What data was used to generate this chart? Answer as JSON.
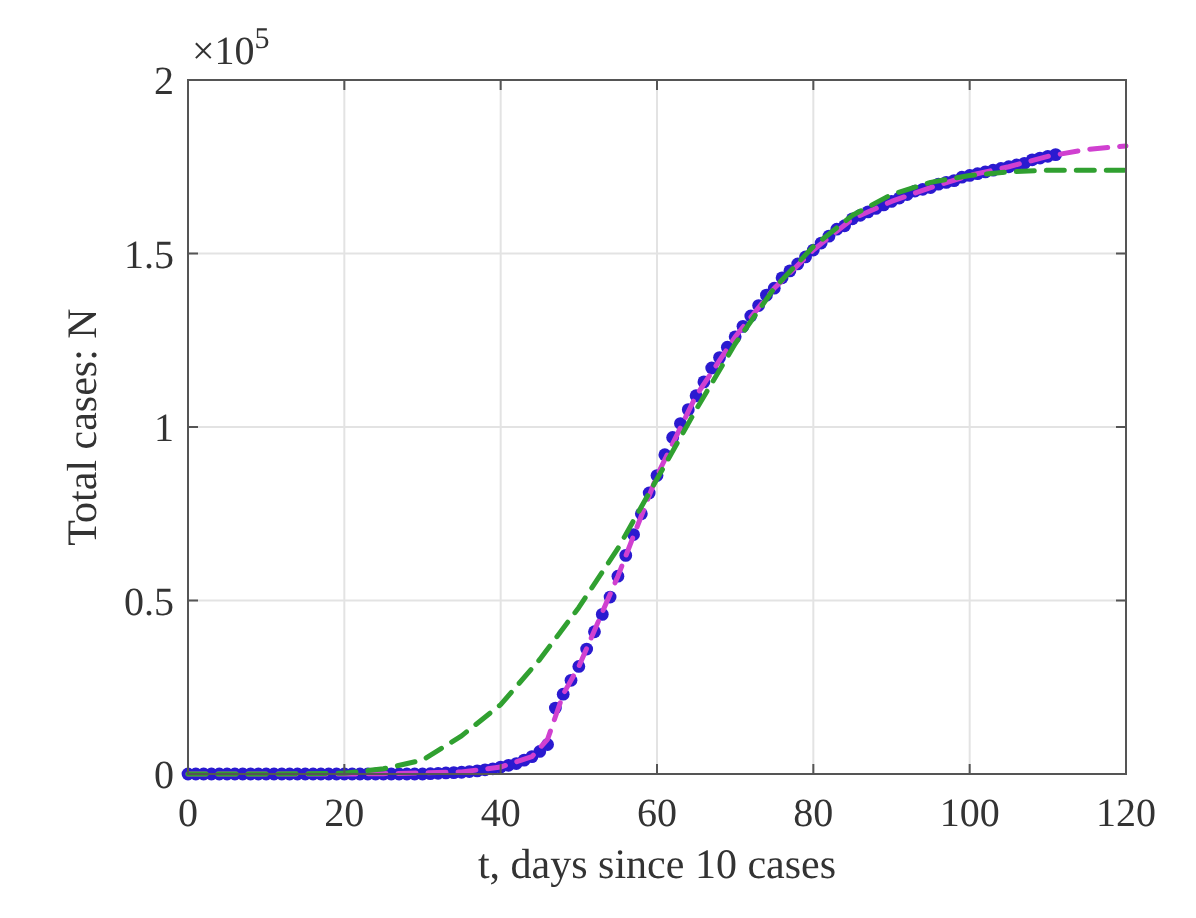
{
  "chart_data": {
    "type": "line",
    "xlabel": "t, days since 10 cases",
    "ylabel": "Total cases: N",
    "annotations": [
      "×10$^{5}$"
    ],
    "xlim": [
      0,
      120
    ],
    "xticks": [
      0,
      20,
      40,
      60,
      80,
      100,
      120
    ],
    "ylim": [
      0,
      2
    ],
    "yticks": [
      0,
      0.5,
      1,
      1.5,
      2
    ],
    "grid": true,
    "series": [
      {
        "color": "#d040d0",
        "line_style": "dashed",
        "marker": "none",
        "x": [
          0,
          10,
          20,
          25,
          30,
          35,
          40,
          44,
          46,
          48,
          50,
          55,
          60,
          65,
          70,
          75,
          80,
          85,
          90,
          95,
          100,
          105,
          110,
          115,
          120
        ],
        "values": [
          0,
          0,
          0,
          0.001,
          0.003,
          0.006,
          0.02,
          0.05,
          0.1,
          0.23,
          0.31,
          0.57,
          0.86,
          1.09,
          1.26,
          1.4,
          1.51,
          1.6,
          1.65,
          1.69,
          1.725,
          1.75,
          1.78,
          1.8,
          1.81
        ]
      },
      {
        "color": "#30a030",
        "line_style": "dashed",
        "marker": "none",
        "x": [
          0,
          10,
          20,
          25,
          30,
          35,
          40,
          45,
          50,
          55,
          60,
          65,
          70,
          75,
          80,
          85,
          90,
          95,
          100,
          105,
          110,
          115,
          120
        ],
        "values": [
          0,
          0,
          0.002,
          0.015,
          0.04,
          0.11,
          0.2,
          0.33,
          0.48,
          0.65,
          0.85,
          1.05,
          1.24,
          1.4,
          1.52,
          1.61,
          1.67,
          1.705,
          1.725,
          1.735,
          1.74,
          1.74,
          1.74
        ]
      },
      {
        "type": "scatter",
        "color": "#2a1ad0",
        "marker": "circle",
        "x": [
          0,
          1,
          2,
          3,
          4,
          5,
          6,
          7,
          8,
          9,
          10,
          11,
          12,
          13,
          14,
          15,
          16,
          17,
          18,
          19,
          20,
          21,
          22,
          23,
          24,
          25,
          26,
          27,
          28,
          29,
          30,
          31,
          32,
          33,
          34,
          35,
          36,
          37,
          38,
          39,
          40,
          41,
          42,
          43,
          44,
          45,
          46,
          47,
          48,
          49,
          50,
          51,
          52,
          53,
          54,
          55,
          56,
          57,
          58,
          59,
          60,
          61,
          62,
          63,
          64,
          65,
          66,
          67,
          68,
          69,
          70,
          71,
          72,
          73,
          74,
          75,
          76,
          77,
          78,
          79,
          80,
          81,
          82,
          83,
          84,
          85,
          86,
          87,
          88,
          89,
          90,
          91,
          92,
          93,
          94,
          95,
          96,
          97,
          98,
          99,
          100,
          101,
          102,
          103,
          104,
          105,
          106,
          107,
          108,
          109,
          110,
          111
        ],
        "values": [
          0,
          0,
          0,
          0,
          0,
          0,
          0,
          0,
          0,
          0,
          0,
          0,
          0,
          0,
          0,
          0,
          0,
          0,
          0,
          0,
          0,
          0,
          0,
          0,
          0,
          0,
          0,
          0,
          0,
          0,
          0,
          0.001,
          0.002,
          0.003,
          0.004,
          0.005,
          0.007,
          0.009,
          0.012,
          0.015,
          0.02,
          0.025,
          0.03,
          0.04,
          0.05,
          0.065,
          0.085,
          0.19,
          0.23,
          0.27,
          0.31,
          0.36,
          0.41,
          0.46,
          0.51,
          0.57,
          0.63,
          0.69,
          0.75,
          0.81,
          0.86,
          0.92,
          0.97,
          1.01,
          1.05,
          1.09,
          1.13,
          1.17,
          1.2,
          1.23,
          1.26,
          1.29,
          1.32,
          1.35,
          1.38,
          1.4,
          1.43,
          1.45,
          1.47,
          1.49,
          1.51,
          1.53,
          1.55,
          1.57,
          1.58,
          1.6,
          1.61,
          1.62,
          1.63,
          1.64,
          1.65,
          1.66,
          1.67,
          1.68,
          1.685,
          1.69,
          1.7,
          1.705,
          1.71,
          1.72,
          1.725,
          1.73,
          1.735,
          1.74,
          1.745,
          1.75,
          1.755,
          1.76,
          1.77,
          1.775,
          1.78,
          1.785
        ]
      }
    ]
  }
}
